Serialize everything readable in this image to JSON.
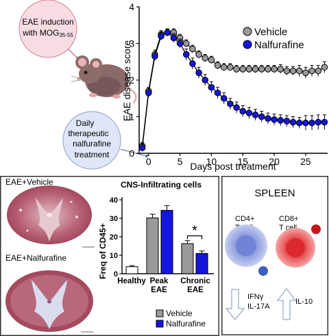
{
  "induction_label": {
    "line1": "EAE induction",
    "line2_prefix": "with MOG",
    "line2_sub": "35-55"
  },
  "treatment_label": {
    "line1": "Daily",
    "line2": "therapeutic",
    "line3": "nalfurafine",
    "line4": "treatment"
  },
  "colors": {
    "vehicle": "#9a9a9a",
    "nalfurafine": "#1515e0",
    "healthy": "#ffffff",
    "induction_circle": "#f7dde3",
    "treatment_circle": "#dfe6f7",
    "cd4_cell": "#7d8fd8",
    "cd8_cell": "#e8393c",
    "spleen_border": "#333333"
  },
  "score_chart": {
    "type": "line",
    "ylabel": "EAE disease score",
    "xlabel": "Days post treatment",
    "xlim": [
      -1.5,
      28.5
    ],
    "ylim": [
      0,
      4
    ],
    "xticks": [
      0,
      5,
      10,
      15,
      20,
      25
    ],
    "yticks": [
      0,
      1,
      2,
      3,
      4
    ],
    "legend_position": "top-right",
    "series": [
      {
        "name": "Vehicle",
        "color": "#9a9a9a",
        "x": [
          -1,
          0,
          1,
          2,
          3,
          4,
          5,
          6,
          7,
          8,
          9,
          10,
          11,
          12,
          13,
          14,
          15,
          16,
          17,
          18,
          19,
          20,
          21,
          22,
          23,
          24,
          25,
          26,
          27,
          28
        ],
        "y": [
          0.2,
          1.7,
          2.7,
          3.25,
          3.3,
          3.3,
          3.15,
          3.0,
          2.85,
          2.7,
          2.6,
          2.55,
          2.4,
          2.35,
          2.35,
          2.3,
          2.3,
          2.3,
          2.3,
          2.3,
          2.3,
          2.3,
          2.3,
          2.25,
          2.25,
          2.25,
          2.2,
          2.25,
          2.25,
          2.35
        ],
        "err": [
          0.1,
          0.1,
          0.12,
          0.1,
          0.1,
          0.1,
          0.1,
          0.1,
          0.1,
          0.1,
          0.1,
          0.1,
          0.1,
          0.1,
          0.1,
          0.1,
          0.1,
          0.1,
          0.1,
          0.1,
          0.1,
          0.1,
          0.12,
          0.12,
          0.12,
          0.15,
          0.15,
          0.15,
          0.15,
          0.15
        ]
      },
      {
        "name": "Nalfurafine",
        "color": "#1515e0",
        "x": [
          -1,
          0,
          1,
          2,
          3,
          4,
          5,
          6,
          7,
          8,
          9,
          10,
          11,
          12,
          13,
          14,
          15,
          16,
          17,
          18,
          19,
          20,
          21,
          22,
          23,
          24,
          25,
          26,
          27,
          28
        ],
        "y": [
          0.15,
          1.65,
          2.65,
          3.2,
          3.3,
          3.15,
          3.0,
          2.7,
          2.45,
          2.2,
          2.0,
          1.8,
          1.65,
          1.5,
          1.35,
          1.25,
          1.15,
          1.1,
          1.05,
          1.0,
          0.95,
          0.92,
          0.9,
          0.88,
          0.85,
          0.83,
          0.83,
          0.83,
          0.85,
          0.85
        ],
        "err": [
          0.1,
          0.12,
          0.12,
          0.1,
          0.1,
          0.12,
          0.12,
          0.15,
          0.15,
          0.15,
          0.15,
          0.15,
          0.15,
          0.15,
          0.15,
          0.15,
          0.15,
          0.15,
          0.15,
          0.15,
          0.15,
          0.15,
          0.15,
          0.15,
          0.15,
          0.15,
          0.2,
          0.2,
          0.2,
          0.2
        ]
      }
    ]
  },
  "cord_images": {
    "vehicle_label": "EAE+Vehicle",
    "nalfurafine_label": "EAE+Nalfurafine"
  },
  "bar_chart": {
    "type": "bar",
    "title": "CNS-Infiltrating cells",
    "ylabel": "Freq of CD45+",
    "ylim": [
      0,
      40
    ],
    "yticks": [
      0,
      10,
      20,
      30,
      40
    ],
    "groups": [
      {
        "label1": "Healthy",
        "label2": "",
        "bars": [
          {
            "series": "Healthy",
            "value": 3.8,
            "err": 0.6
          }
        ]
      },
      {
        "label1": "Peak",
        "label2": "EAE",
        "bars": [
          {
            "series": "Vehicle",
            "value": 30.2,
            "err": 2.0
          },
          {
            "series": "Nalfurafine",
            "value": 34.3,
            "err": 2.5
          }
        ]
      },
      {
        "label1": "Chronic",
        "label2": "EAE",
        "bars": [
          {
            "series": "Vehicle",
            "value": 16.3,
            "err": 1.6
          },
          {
            "series": "Nalfurafine",
            "value": 11.0,
            "err": 1.3
          }
        ]
      }
    ],
    "significance": "*",
    "legend": [
      {
        "name": "Vehicle",
        "color": "#9a9a9a"
      },
      {
        "name": "Nalfurafine",
        "color": "#1515e0"
      }
    ]
  },
  "spleen": {
    "title": "SPLEEN",
    "cd4_line1": "CD4+",
    "cd4_line2": "T cell",
    "cd8_line1": "CD8+",
    "cd8_line2": "T cell",
    "down_line1": "IFNγ",
    "down_line2": "IL-17A",
    "up_label": "IL-10"
  }
}
